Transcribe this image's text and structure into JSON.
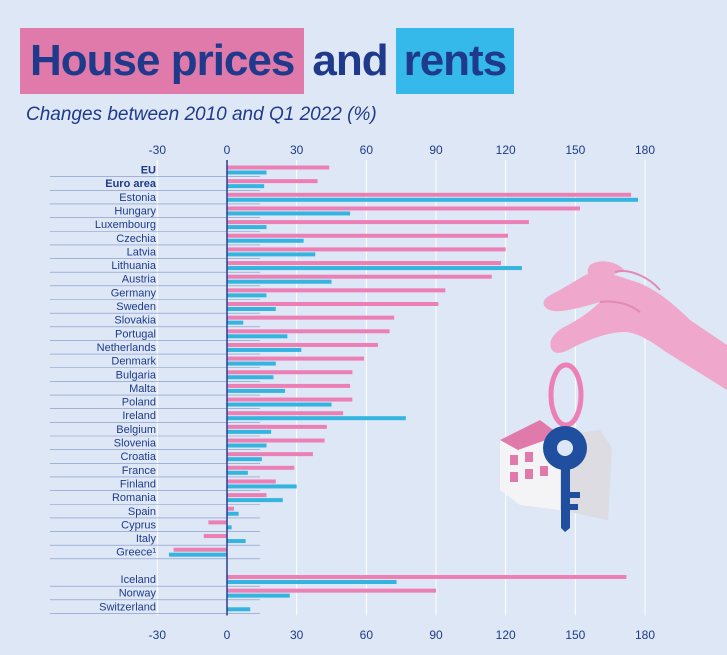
{
  "title": {
    "part1": "House prices",
    "part2": "and",
    "part3": "rents"
  },
  "subtitle": "Changes between 2010 and Q1 2022 (%)",
  "colors": {
    "prices": "#ec7fb4",
    "rents": "#35b4e0",
    "text": "#1f3a8a",
    "background": "#dde7f6"
  },
  "chart_data": {
    "type": "bar",
    "orientation": "horizontal",
    "title": "House prices and rents",
    "subtitle": "Changes between 2010 and Q1 2022 (%)",
    "xlim": [
      -30,
      180
    ],
    "xticks": [
      "-30",
      "0",
      "30",
      "60",
      "90",
      "120",
      "150",
      "180"
    ],
    "tick_values": [
      -30,
      0,
      30,
      60,
      90,
      120,
      150,
      180
    ],
    "grid": true,
    "categories": [
      "EU",
      "Euro area",
      "Estonia",
      "Hungary",
      "Luxembourg",
      "Czechia",
      "Latvia",
      "Lithuania",
      "Austria",
      "Germany",
      "Sweden",
      "Slovakia",
      "Portugal",
      "Netherlands",
      "Denmark",
      "Bulgaria",
      "Malta",
      "Poland",
      "Ireland",
      "Belgium",
      "Slovenia",
      "Croatia",
      "France",
      "Finland",
      "Romania",
      "Spain",
      "Cyprus",
      "Italy",
      "Greece¹",
      "",
      "Iceland",
      "Norway",
      "Switzerland"
    ],
    "bold_categories": [
      "EU",
      "Euro area"
    ],
    "series": [
      {
        "key": "prices",
        "values": [
          44,
          39,
          174,
          152,
          130,
          121,
          120,
          118,
          114,
          94,
          91,
          72,
          70,
          65,
          59,
          54,
          53,
          54,
          50,
          43,
          42,
          37,
          29,
          21,
          17,
          3,
          -8,
          -10,
          -23,
          null,
          172,
          90,
          null
        ]
      },
      {
        "key": "rents",
        "values": [
          17,
          16,
          177,
          53,
          17,
          33,
          38,
          127,
          45,
          17,
          21,
          7,
          26,
          32,
          21,
          20,
          25,
          45,
          77,
          19,
          17,
          15,
          9,
          30,
          24,
          5,
          2,
          8,
          -25,
          null,
          73,
          27,
          10
        ]
      }
    ]
  }
}
